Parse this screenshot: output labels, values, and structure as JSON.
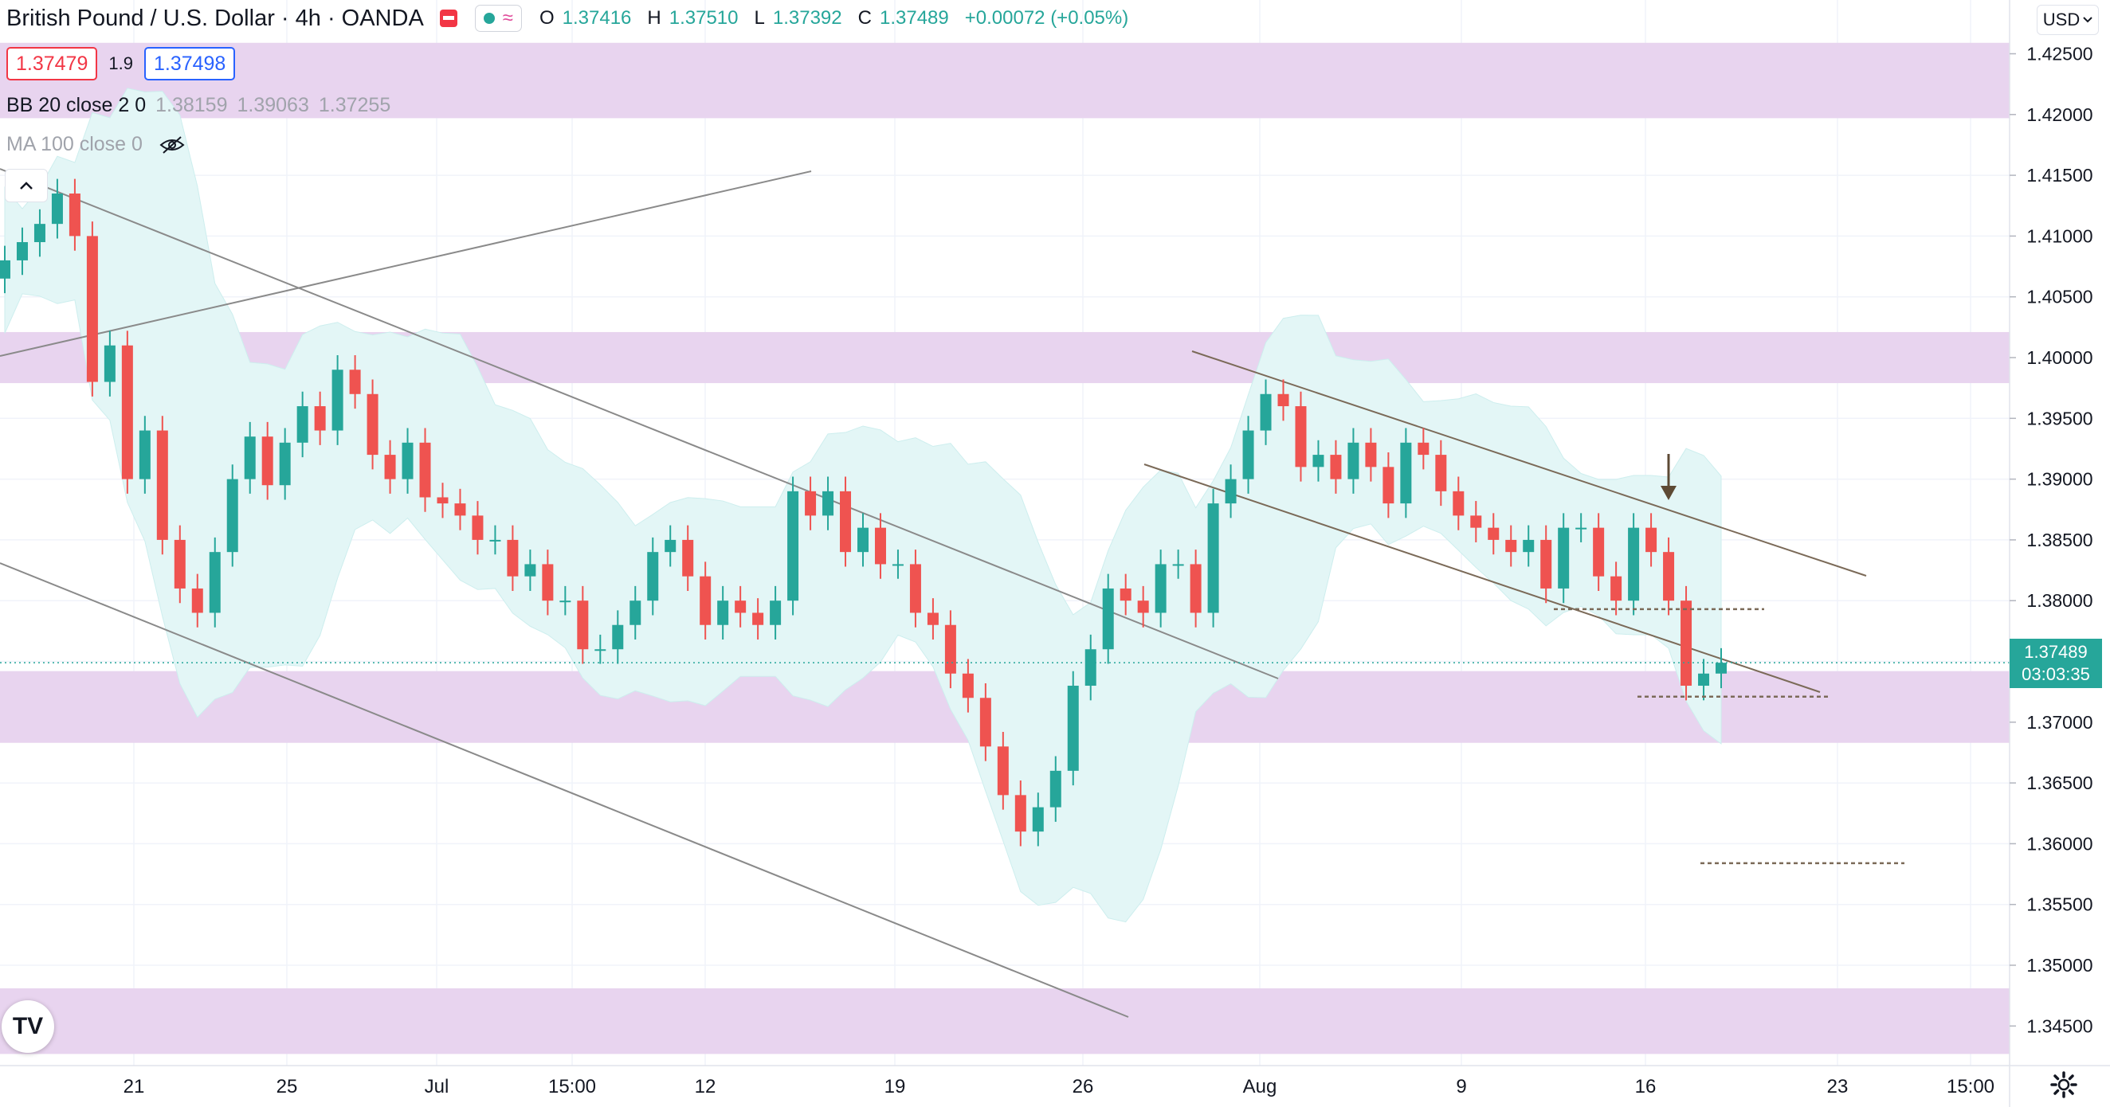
{
  "header": {
    "title": "British Pound / U.S. Dollar · 4h · OANDA",
    "ohlc": {
      "o": "1.37416",
      "h": "1.37510",
      "l": "1.37392",
      "c": "1.37489",
      "change": "+0.00072 (+0.05%)"
    },
    "bid": "1.37479",
    "spread": "1.9",
    "ask": "1.37498"
  },
  "indicators": {
    "bb_label": "BB 20 close 2 0",
    "bb_values": [
      "1.38159",
      "1.39063",
      "1.37255"
    ],
    "ma_label": "MA 100 close 0"
  },
  "currency_selector": "USD",
  "current_price": {
    "price": "1.37489",
    "countdown": "03:03:35"
  },
  "colors": {
    "up": "#26a69a",
    "down": "#ef5350",
    "zone": "#e8d4ef",
    "bb_fill": "#e3f6f6",
    "trendline": "#8a8a8a",
    "channel": "#7b6a58"
  },
  "chart_data": {
    "type": "candlestick",
    "symbol": "GBPUSD",
    "timeframe": "4h",
    "ylim": [
      1.342,
      1.428
    ],
    "y_ticks": [
      "1.42500",
      "1.42000",
      "1.41500",
      "1.41000",
      "1.40500",
      "1.40000",
      "1.39500",
      "1.39000",
      "1.38500",
      "1.38000",
      "1.37500",
      "1.37000",
      "1.36500",
      "1.36000",
      "1.35500",
      "1.35000",
      "1.34500"
    ],
    "x_ticks": [
      "21",
      "25",
      "Jul",
      "15:00",
      "12",
      "19",
      "26",
      "Aug",
      "9",
      "16",
      "23",
      "15:00"
    ],
    "series_close": [
      1.408,
      1.4095,
      1.411,
      1.4135,
      1.41,
      1.398,
      1.401,
      1.39,
      1.394,
      1.385,
      1.381,
      1.379,
      1.384,
      1.39,
      1.3935,
      1.3895,
      1.393,
      1.396,
      1.394,
      1.399,
      1.397,
      1.392,
      1.39,
      1.393,
      1.3885,
      1.388,
      1.387,
      1.385,
      1.385,
      1.382,
      1.383,
      1.38,
      1.38,
      1.376,
      1.376,
      1.378,
      1.38,
      1.384,
      1.385,
      1.382,
      1.378,
      1.38,
      1.379,
      1.378,
      1.38,
      1.389,
      1.387,
      1.389,
      1.384,
      1.386,
      1.383,
      1.383,
      1.379,
      1.378,
      1.374,
      1.372,
      1.368,
      1.364,
      1.361,
      1.363,
      1.366,
      1.373,
      1.376,
      1.381,
      1.38,
      1.379,
      1.383,
      1.383,
      1.379,
      1.388,
      1.39,
      1.394,
      1.397,
      1.396,
      1.391,
      1.392,
      1.39,
      1.393,
      1.391,
      1.388,
      1.393,
      1.392,
      1.389,
      1.387,
      1.386,
      1.385,
      1.384,
      1.385,
      1.381,
      1.386,
      1.386,
      1.382,
      1.38,
      1.386,
      1.384,
      1.38,
      1.373,
      1.374,
      1.37489
    ],
    "resistance_zones": [
      [
        1.4197,
        1.4259
      ],
      [
        1.3979,
        1.4021
      ],
      [
        1.3683,
        1.3742
      ],
      [
        1.3427,
        1.3481
      ]
    ],
    "horizontal_levels": [
      1.3793,
      1.3721,
      1.3584
    ]
  }
}
